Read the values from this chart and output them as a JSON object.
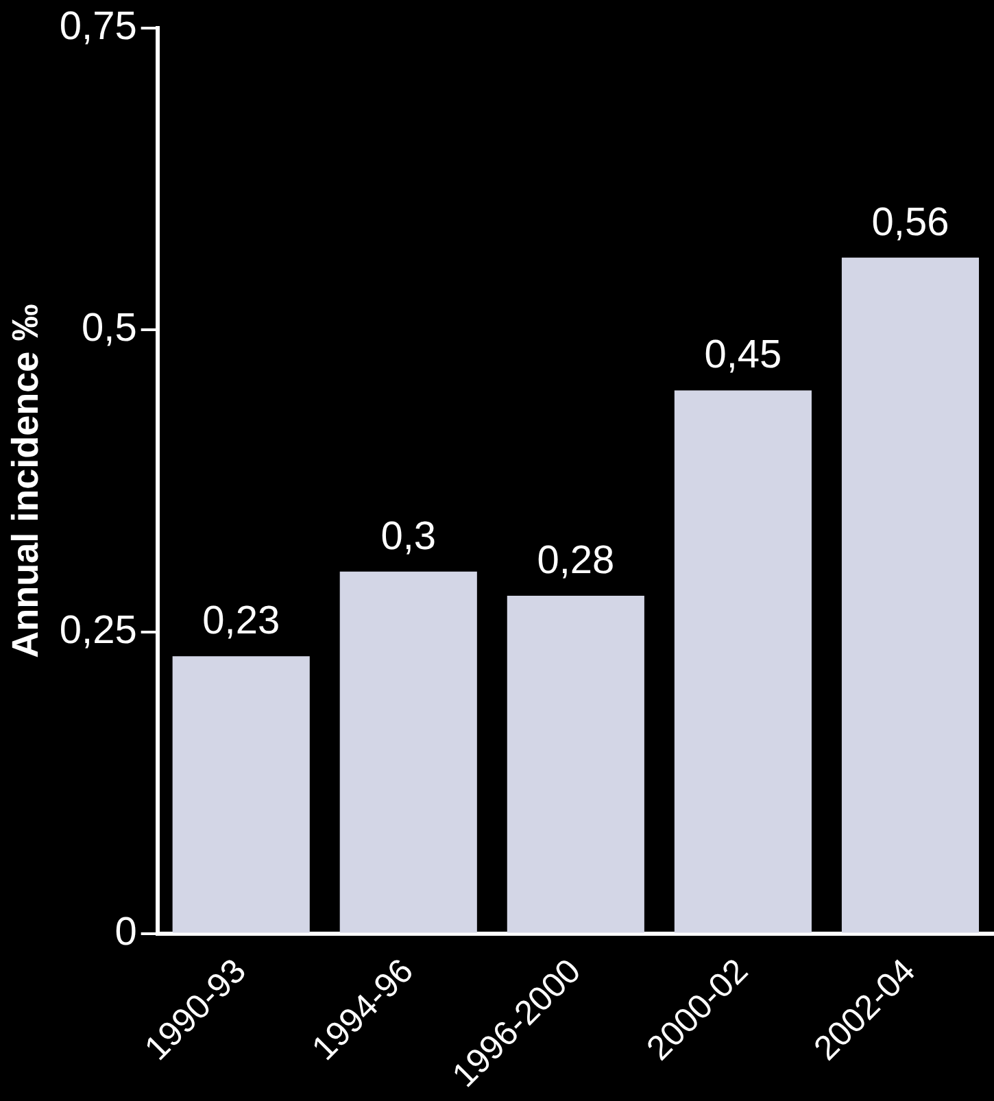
{
  "chart_data": {
    "type": "bar",
    "ylabel": "Annual incidence ‰",
    "categories": [
      "1990-93",
      "1994-96",
      "1996-2000",
      "2000-02",
      "2002-04"
    ],
    "values": [
      0.23,
      0.3,
      0.28,
      0.45,
      0.56
    ],
    "value_labels": [
      "0,23",
      "0,3",
      "0,28",
      "0,45",
      "0,56"
    ],
    "color": "#d3d6e6",
    "ylim": [
      0,
      0.75
    ],
    "yticks": [
      {
        "value": 0,
        "label": "0"
      },
      {
        "value": 0.25,
        "label": "0,25"
      },
      {
        "value": 0.5,
        "label": "0,5"
      },
      {
        "value": 0.75,
        "label": "0,75"
      }
    ],
    "grid": false,
    "legend": false
  }
}
